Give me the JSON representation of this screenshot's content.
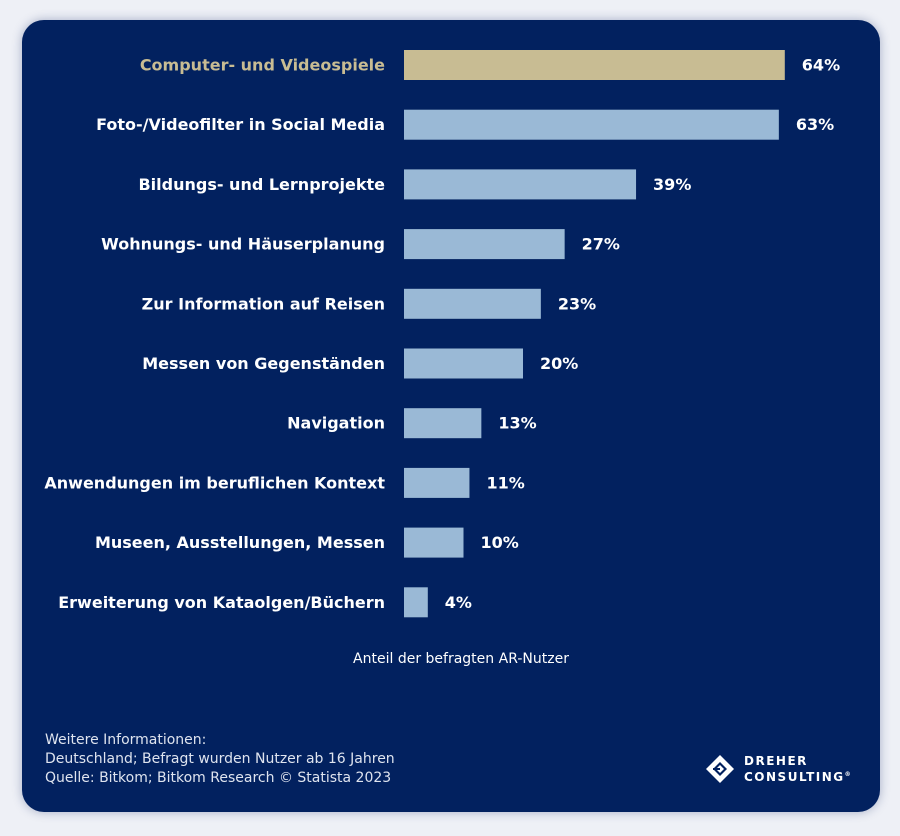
{
  "chart_data": {
    "type": "bar",
    "orientation": "horizontal",
    "categories": [
      "Computer- und Videospiele",
      "Foto-/Videofilter in Social Media",
      "Bildungs- und Lernprojekte",
      "Wohnungs- und Häuserplanung",
      "Zur Information auf Reisen",
      "Messen von Gegenständen",
      "Navigation",
      "Anwendungen im beruflichen Kontext",
      "Museen, Ausstellungen, Messen",
      "Erweiterung von Kataolgen/Büchern"
    ],
    "values": [
      64,
      63,
      39,
      27,
      23,
      20,
      13,
      11,
      10,
      4
    ],
    "value_labels": [
      "64%",
      "63%",
      "39%",
      "27%",
      "23%",
      "20%",
      "13%",
      "11%",
      "10%",
      "4%"
    ],
    "unit": "%",
    "xlabel": "Anteil der befragten AR-Nutzer",
    "highlight_index": 0,
    "colors": {
      "bar": "#9ab9d6",
      "highlight_bar": "#c8bc93",
      "highlight_label": "#c8bc93",
      "label": "#ffffff",
      "background": "#02215f"
    },
    "grid": false,
    "legend": "none"
  },
  "footer": {
    "line1": "Weitere Informationen:",
    "line2": "Deutschland; Befragt wurden Nutzer ab 16 Jahren",
    "line3": "Quelle: Bitkom; Bitkom Research © Statista 2023"
  },
  "logo": {
    "line1": "DREHER",
    "line2": "CONSULTING",
    "mark": "®",
    "icon": "diamond-logo-icon"
  }
}
